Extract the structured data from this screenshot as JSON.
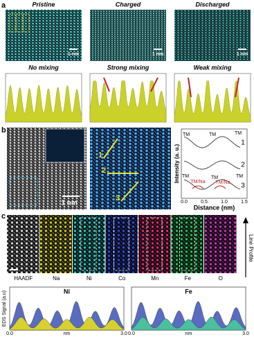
{
  "panel_a": {
    "label": "a",
    "columns": [
      {
        "title": "Pristine",
        "scale": "1 nm",
        "profile": "No mixing"
      },
      {
        "title": "Charged",
        "scale": "1 nm",
        "profile": "Strong mixing"
      },
      {
        "title": "Discharged",
        "scale": "1 nm",
        "profile": "Weak mixing"
      }
    ]
  },
  "panel_b": {
    "label": "b",
    "scale": "1 nm",
    "line_labels": [
      "1",
      "2",
      "3"
    ],
    "plot": {
      "row1": [
        "TM",
        "TM",
        "TM"
      ],
      "row3": [
        "TM",
        "TM/Na",
        "TM",
        "TM/Na",
        "TM"
      ],
      "curve_labels": [
        "1",
        "2",
        "3"
      ],
      "y_label": "Intensity (a. u.)",
      "x_ticks": [
        "0.0",
        "0.5",
        "1.0",
        "1.5"
      ],
      "x_label": "Distance (nm)"
    }
  },
  "panel_c": {
    "label": "c",
    "maps": [
      "HAADF",
      "Na",
      "Ni",
      "Co",
      "Mn",
      "Fe",
      "O"
    ],
    "arrow_label": "Line Profile",
    "plots": [
      {
        "title": "Ni",
        "x_ticks": [
          "0.0",
          "nm",
          "3.0"
        ]
      },
      {
        "title": "Fe",
        "x_ticks": [
          "0.0",
          "nm",
          "3.0"
        ]
      }
    ],
    "y_label": "EDS Signal (a.u)"
  }
}
